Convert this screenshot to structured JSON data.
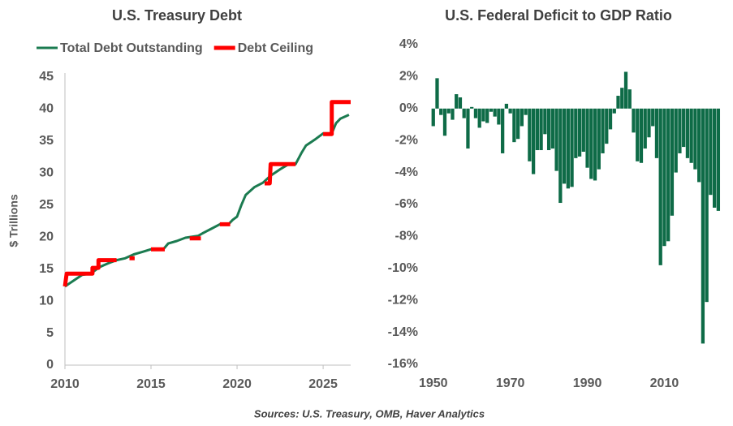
{
  "chart_data": [
    {
      "type": "line",
      "title": "U.S. Treasury Debt",
      "y_label": "$ Trillions",
      "xlim": [
        2010,
        2026.6
      ],
      "xticks": [
        2010,
        2015,
        2020,
        2025
      ],
      "ylim": [
        0,
        45
      ],
      "yticks": [
        0,
        5,
        10,
        15,
        20,
        25,
        30,
        35,
        40,
        45
      ],
      "legend": "top",
      "series": [
        {
          "name": "Total Debt Outstanding",
          "color": "#1b7b50",
          "x": [
            2010,
            2010.5,
            2011,
            2011.5,
            2012,
            2012.5,
            2013,
            2013.5,
            2014,
            2014.5,
            2015,
            2015.75,
            2016,
            2016.5,
            2017,
            2017.75,
            2018,
            2018.5,
            2019,
            2019.5,
            2019.75,
            2020,
            2020.25,
            2020.5,
            2021,
            2021.5,
            2021.95,
            2022.5,
            2023,
            2023.4,
            2023.75,
            2024,
            2024.5,
            2025,
            2025.5,
            2025.75,
            2026,
            2026.5
          ],
          "values": [
            12.3,
            13.2,
            14.1,
            14.3,
            15.3,
            15.9,
            16.4,
            16.7,
            17.3,
            17.7,
            18.1,
            18.2,
            19.0,
            19.4,
            19.9,
            20.2,
            20.6,
            21.3,
            22.0,
            22.0,
            22.7,
            23.2,
            25.0,
            26.6,
            27.8,
            28.5,
            29.6,
            30.6,
            31.4,
            31.4,
            33.2,
            34.3,
            35.2,
            36.2,
            36.2,
            37.8,
            38.5,
            39.1
          ]
        },
        {
          "name": "Debt Ceiling",
          "color": "#ff0000",
          "x": [
            2010,
            2010.1,
            2011.6,
            2011.6,
            2011.95,
            2011.95,
            2013.0,
            null,
            2013.75,
            2014.05,
            null,
            2015.0,
            2015.8,
            null,
            2017.25,
            2017.9,
            null,
            2019.0,
            2019.6,
            null,
            2021.6,
            2021.9,
            2021.95,
            2023.4,
            null,
            2025.0,
            2025.5,
            2025.5,
            2026.6
          ],
          "values": [
            12.3,
            14.3,
            14.3,
            15.2,
            15.2,
            16.4,
            16.4,
            null,
            16.7,
            16.7,
            null,
            18.1,
            18.1,
            null,
            19.8,
            19.8,
            null,
            22.0,
            22.0,
            null,
            28.4,
            28.4,
            31.4,
            31.4,
            null,
            36.1,
            36.1,
            41.1,
            41.1
          ]
        }
      ]
    },
    {
      "type": "bar",
      "title": "U.S. Federal Deficit to GDP Ratio",
      "color": "#0e6b47",
      "xlim": [
        1949,
        2025.5
      ],
      "xticks": [
        1950,
        1970,
        1990,
        2010
      ],
      "ylim": [
        -16,
        4
      ],
      "yticks": [
        {
          "value": -16,
          "label": "-16%"
        },
        {
          "value": -14,
          "label": "-14%"
        },
        {
          "value": -12,
          "label": "-12%"
        },
        {
          "value": -10,
          "label": "-10%"
        },
        {
          "value": -8,
          "label": "-8%"
        },
        {
          "value": -6,
          "label": "-6%"
        },
        {
          "value": -4,
          "label": "-4%"
        },
        {
          "value": -2,
          "label": "-2%"
        },
        {
          "value": 0,
          "label": "0%"
        },
        {
          "value": 2,
          "label": "2%"
        },
        {
          "value": 4,
          "label": "4%"
        }
      ],
      "x": [
        1950,
        1951,
        1952,
        1953,
        1954,
        1955,
        1956,
        1957,
        1958,
        1959,
        1960,
        1961,
        1962,
        1963,
        1964,
        1965,
        1966,
        1967,
        1968,
        1969,
        1970,
        1971,
        1972,
        1973,
        1974,
        1975,
        1976,
        1977,
        1978,
        1979,
        1980,
        1981,
        1982,
        1983,
        1984,
        1985,
        1986,
        1987,
        1988,
        1989,
        1990,
        1991,
        1992,
        1993,
        1994,
        1995,
        1996,
        1997,
        1998,
        1999,
        2000,
        2001,
        2002,
        2003,
        2004,
        2005,
        2006,
        2007,
        2008,
        2009,
        2010,
        2011,
        2012,
        2013,
        2014,
        2015,
        2016,
        2017,
        2018,
        2019,
        2020,
        2021,
        2022,
        2023,
        2024
      ],
      "values": [
        -1.1,
        1.9,
        -0.4,
        -1.7,
        -0.3,
        -0.7,
        0.9,
        0.7,
        -0.6,
        -2.5,
        0.1,
        -0.6,
        -1.2,
        -0.8,
        -0.9,
        -0.2,
        -0.5,
        -1.0,
        -2.8,
        0.3,
        -0.3,
        -2.1,
        -1.9,
        -1.1,
        -0.4,
        -3.3,
        -4.1,
        -2.6,
        -2.6,
        -1.6,
        -2.6,
        -2.5,
        -3.9,
        -5.9,
        -4.7,
        -5.0,
        -4.9,
        -3.1,
        -3.0,
        -2.7,
        -3.7,
        -4.4,
        -4.5,
        -3.8,
        -2.8,
        -2.2,
        -1.3,
        -0.3,
        0.8,
        1.3,
        2.3,
        1.2,
        -1.5,
        -3.3,
        -3.4,
        -2.5,
        -1.8,
        -1.1,
        -3.1,
        -9.8,
        -8.6,
        -8.3,
        -6.7,
        -4.0,
        -2.8,
        -2.4,
        -3.1,
        -3.4,
        -3.8,
        -4.6,
        -14.7,
        -12.1,
        -5.4,
        -6.2,
        -6.4
      ]
    }
  ],
  "source": "Sources: U.S. Treasury, OMB, Haver Analytics"
}
